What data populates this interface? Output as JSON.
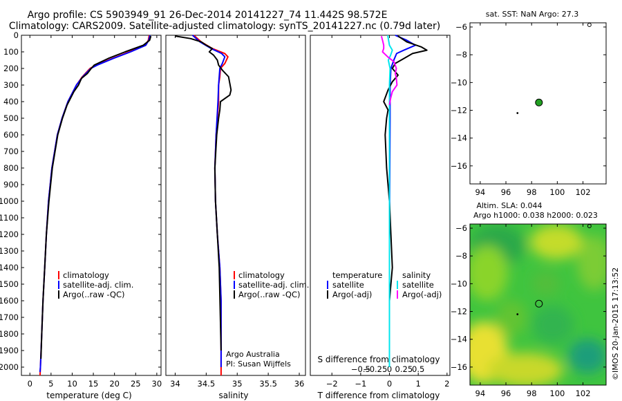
{
  "header": {
    "line1": "Argo profile: CS 5903949_91 26-Dec-2014 20141227_74 11.442S 98.572E",
    "line2": "Climatology: CARS2009. Satellite-adjusted climatology: synTS_20141227.nc (0.79d later)"
  },
  "colors": {
    "climatology": "#ff0000",
    "satellite": "#0000ff",
    "argo": "#000000",
    "sat_salinity": "#00e5ee",
    "argo_salinity": "#ff00ff",
    "float_marker": "#22a022"
  },
  "depth_axis": {
    "ylim": [
      2050,
      0
    ],
    "ticks": [
      0,
      100,
      200,
      300,
      400,
      500,
      600,
      700,
      800,
      900,
      1000,
      1100,
      1200,
      1300,
      1400,
      1500,
      1600,
      1700,
      1800,
      1900,
      2000
    ]
  },
  "chart_data": [
    {
      "id": "temperature",
      "type": "line",
      "xlabel": "temperature (deg C)",
      "xlim": [
        -2,
        31
      ],
      "xticks": [
        0,
        5,
        10,
        15,
        20,
        25,
        30
      ],
      "legend": [
        "climatology",
        "satellite-adj. clim.",
        "Argo(..raw -QC)"
      ],
      "series": [
        {
          "name": "climatology",
          "color": "#ff0000",
          "depth": [
            0,
            30,
            60,
            100,
            140,
            180,
            200,
            250,
            300,
            400,
            500,
            600,
            800,
            1000,
            1200,
            1400,
            1600,
            1800,
            2000,
            2050
          ],
          "values": [
            28.2,
            28.0,
            27.3,
            23.5,
            19.5,
            15.6,
            14.2,
            12.4,
            11.0,
            9.0,
            7.6,
            6.5,
            5.2,
            4.4,
            3.9,
            3.5,
            3.1,
            2.8,
            2.5,
            2.4
          ]
        },
        {
          "name": "satellite-adj. clim.",
          "color": "#0000ff",
          "depth": [
            0,
            30,
            60,
            100,
            140,
            180,
            200,
            250,
            300,
            400,
            500,
            600,
            800,
            1000,
            1200,
            1400,
            1600,
            1800,
            2000,
            2030
          ],
          "values": [
            28.4,
            28.1,
            27.4,
            23.8,
            19.7,
            15.9,
            14.4,
            12.5,
            11.0,
            9.0,
            7.6,
            6.5,
            5.2,
            4.4,
            3.9,
            3.5,
            3.1,
            2.8,
            2.5,
            2.4
          ]
        },
        {
          "name": "Argo(..raw -QC)",
          "color": "#000000",
          "depth": [
            5,
            30,
            60,
            100,
            140,
            180,
            200,
            230,
            260,
            300,
            340,
            380,
            420,
            500,
            600,
            800,
            1000,
            1200,
            1400,
            1600,
            1800,
            1950
          ],
          "values": [
            28.6,
            28.3,
            26.8,
            22.5,
            18.5,
            15.2,
            14.5,
            13.6,
            12.2,
            11.5,
            10.4,
            9.6,
            8.8,
            7.7,
            6.6,
            5.3,
            4.5,
            3.9,
            3.5,
            3.1,
            2.8,
            2.6
          ]
        }
      ]
    },
    {
      "id": "salinity",
      "type": "line",
      "xlabel": "salinity",
      "xlim": [
        33.85,
        36.1
      ],
      "xticks": [
        34,
        34.5,
        35,
        35.5,
        36
      ],
      "legend": [
        "climatology",
        "satellite-adj. clim.",
        "Argo(..raw -QC)"
      ],
      "annotation": [
        "Argo Australia",
        "PI: Susan Wijffels"
      ],
      "series": [
        {
          "name": "climatology",
          "color": "#ff0000",
          "depth": [
            0,
            40,
            80,
            110,
            130,
            170,
            200,
            250,
            300,
            400,
            600,
            800,
            1000,
            1200,
            1400,
            1600,
            1800,
            2050
          ],
          "values": [
            34.3,
            34.42,
            34.6,
            34.8,
            34.85,
            34.8,
            34.73,
            34.72,
            34.7,
            34.7,
            34.66,
            34.64,
            34.65,
            34.68,
            34.72,
            34.74,
            34.74,
            34.74
          ]
        },
        {
          "name": "satellite-adj. clim.",
          "color": "#0000ff",
          "depth": [
            0,
            40,
            80,
            110,
            130,
            170,
            200,
            250,
            300,
            400,
            600,
            800,
            1000,
            1200,
            1400,
            1600,
            1800,
            2000
          ],
          "values": [
            34.28,
            34.4,
            34.58,
            34.75,
            34.8,
            34.76,
            34.72,
            34.71,
            34.7,
            34.69,
            34.66,
            34.64,
            34.65,
            34.68,
            34.72,
            34.74,
            34.74,
            34.74
          ]
        },
        {
          "name": "Argo(..raw -QC)",
          "color": "#000000",
          "depth": [
            5,
            20,
            40,
            60,
            80,
            100,
            120,
            150,
            180,
            210,
            250,
            290,
            330,
            360,
            400,
            450,
            500,
            600,
            800,
            1000,
            1400,
            1900
          ],
          "values": [
            34.0,
            34.25,
            34.42,
            34.5,
            34.6,
            34.55,
            34.62,
            34.68,
            34.7,
            34.76,
            34.86,
            34.88,
            34.9,
            34.88,
            34.73,
            34.72,
            34.7,
            34.67,
            34.64,
            34.65,
            34.71,
            34.74
          ]
        }
      ]
    },
    {
      "id": "difference",
      "type": "line",
      "xlabel": "T difference from climatology",
      "top_label": "S difference from climatology",
      "xlim": [
        -2.75,
        2.1
      ],
      "xticks": [
        -2,
        -1,
        0,
        1,
        2
      ],
      "top_ticks": [
        -0.5,
        -0.25,
        0,
        0.25,
        0.5
      ],
      "legend_temperature_title": "temperature",
      "legend_salinity_title": "salinity",
      "legend": [
        "satellite",
        "Argo(-adj)",
        "satellite",
        "Argo(-adj)"
      ],
      "series": [
        {
          "name": "T satellite",
          "color": "#0000ff",
          "depth": [
            0,
            30,
            60,
            90,
            110,
            150,
            200,
            300,
            500,
            800,
            1200,
            1600,
            2000
          ],
          "values": [
            0.2,
            0.6,
            0.9,
            0.5,
            0.25,
            0.15,
            0.05,
            0.02,
            0.02,
            0.01,
            0.0,
            0.0,
            0.0
          ]
        },
        {
          "name": "T Argo(-adj)",
          "color": "#000000",
          "depth": [
            5,
            40,
            70,
            90,
            110,
            140,
            170,
            200,
            240,
            280,
            330,
            400,
            450,
            500,
            600,
            800,
            1000,
            1200,
            1400,
            1500,
            1600,
            1800,
            2000
          ],
          "values": [
            0.3,
            0.6,
            1.1,
            1.3,
            0.8,
            0.5,
            0.2,
            0.1,
            0.3,
            0.1,
            -0.05,
            -0.2,
            -0.05,
            -0.1,
            -0.15,
            -0.1,
            0.0,
            0.05,
            0.1,
            0.05,
            0.0,
            0.0,
            0.0
          ]
        },
        {
          "name": "S satellite",
          "color": "#00e5ee",
          "depth": [
            0,
            60,
            90,
            120,
            150,
            200,
            300,
            500,
            800,
            1200,
            1600,
            2000
          ],
          "values": [
            -0.03,
            0.0,
            0.05,
            0.02,
            -0.02,
            0.01,
            0.0,
            0.0,
            0.0,
            0.0,
            0.0,
            0.0
          ]
        },
        {
          "name": "S Argo(-adj)",
          "color": "#ff00ff",
          "depth": [
            5,
            30,
            60,
            80,
            100,
            130,
            160,
            200,
            230,
            260,
            300,
            340,
            380,
            420
          ],
          "values": [
            -0.14,
            -0.12,
            -0.1,
            -0.1,
            -0.12,
            -0.03,
            0.08,
            0.12,
            0.1,
            0.12,
            0.13,
            0.05,
            0.02,
            0.0
          ]
        }
      ]
    },
    {
      "id": "sst_map",
      "type": "scatter",
      "title": "sat. SST: NaN Argo: 27.3",
      "xlim": [
        93.2,
        103.8
      ],
      "ylim": [
        -17.3,
        -5.7
      ],
      "xticks": [
        94,
        96,
        98,
        100,
        102
      ],
      "yticks": [
        -6,
        -8,
        -10,
        -12,
        -14,
        -16
      ],
      "points": [
        {
          "name": "argo-float",
          "lon": 98.57,
          "lat": -11.44
        },
        {
          "name": "previous-position",
          "lon": 96.9,
          "lat": -12.2
        }
      ]
    },
    {
      "id": "sla_map",
      "type": "heatmap",
      "title_line1": "Altim. SLA: 0.044",
      "title_line2": "Argo h1000: 0.038 h2000: 0.023",
      "xlim": [
        93.2,
        103.8
      ],
      "ylim": [
        -17.3,
        -5.7
      ],
      "xticks": [
        94,
        96,
        98,
        100,
        102
      ],
      "yticks": [
        -6,
        -8,
        -10,
        -12,
        -14,
        -16
      ],
      "points": [
        {
          "name": "argo-float",
          "lon": 98.57,
          "lat": -11.44
        },
        {
          "name": "previous-position",
          "lon": 96.9,
          "lat": -12.2
        }
      ]
    }
  ],
  "watermark": "©IMOS 20-Jan-2015 17:13:52"
}
